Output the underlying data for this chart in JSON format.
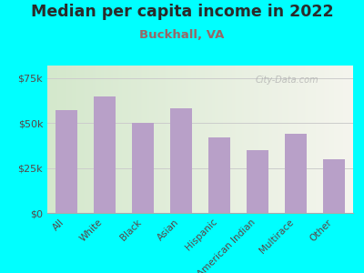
{
  "title": "Median per capita income in 2022",
  "subtitle": "Buckhall, VA",
  "categories": [
    "All",
    "White",
    "Black",
    "Asian",
    "Hispanic",
    "American Indian",
    "Multirace",
    "Other"
  ],
  "values": [
    57000,
    65000,
    50000,
    58000,
    42000,
    35000,
    44000,
    30000
  ],
  "bar_color": "#b8a0c8",
  "background_color": "#00FFFF",
  "plot_bg_left": "#d4e8cc",
  "plot_bg_right": "#f5f5ee",
  "ylim": [
    0,
    82000
  ],
  "yticks": [
    0,
    25000,
    50000,
    75000
  ],
  "ytick_labels": [
    "$0",
    "$25k",
    "$50k",
    "$75k"
  ],
  "title_color": "#2a2a2a",
  "subtitle_color": "#996666",
  "tick_color": "#5a4444",
  "watermark": "City-Data.com",
  "title_fontsize": 12.5,
  "subtitle_fontsize": 9.5
}
